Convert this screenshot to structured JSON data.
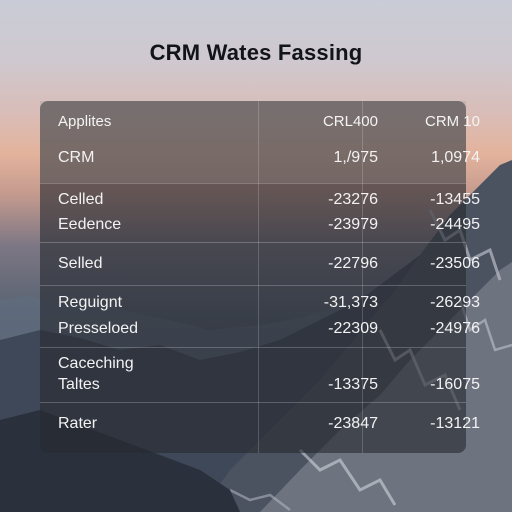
{
  "title": "CRM Wates Fassing",
  "table": {
    "columns": [
      "Applites",
      "CRL400",
      "CRM 10"
    ],
    "rows": [
      {
        "label": "CRM",
        "v1": "1,/975",
        "v2": "1,0974"
      },
      {
        "label": "Celled",
        "v1": "-23276",
        "v2": "-13455"
      },
      {
        "label": "Eedence",
        "v1": "-23979",
        "v2": "-24495"
      },
      {
        "label": "Selled",
        "v1": "-22796",
        "v2": "-23506"
      },
      {
        "label": "Reguignt",
        "v1": "-31,373",
        "v2": "-26293"
      },
      {
        "label": "Presseloed",
        "v1": "-22309",
        "v2": "-24976"
      },
      {
        "label": "Caceching",
        "v1": "",
        "v2": ""
      },
      {
        "label": "Taltes",
        "v1": "-13375",
        "v2": "-16075"
      },
      {
        "label": "Rater",
        "v1": "-23847",
        "v2": "-13121"
      }
    ]
  },
  "colors": {
    "panel": "#262a30",
    "title": "#111418",
    "text": "#f2f2f2"
  }
}
